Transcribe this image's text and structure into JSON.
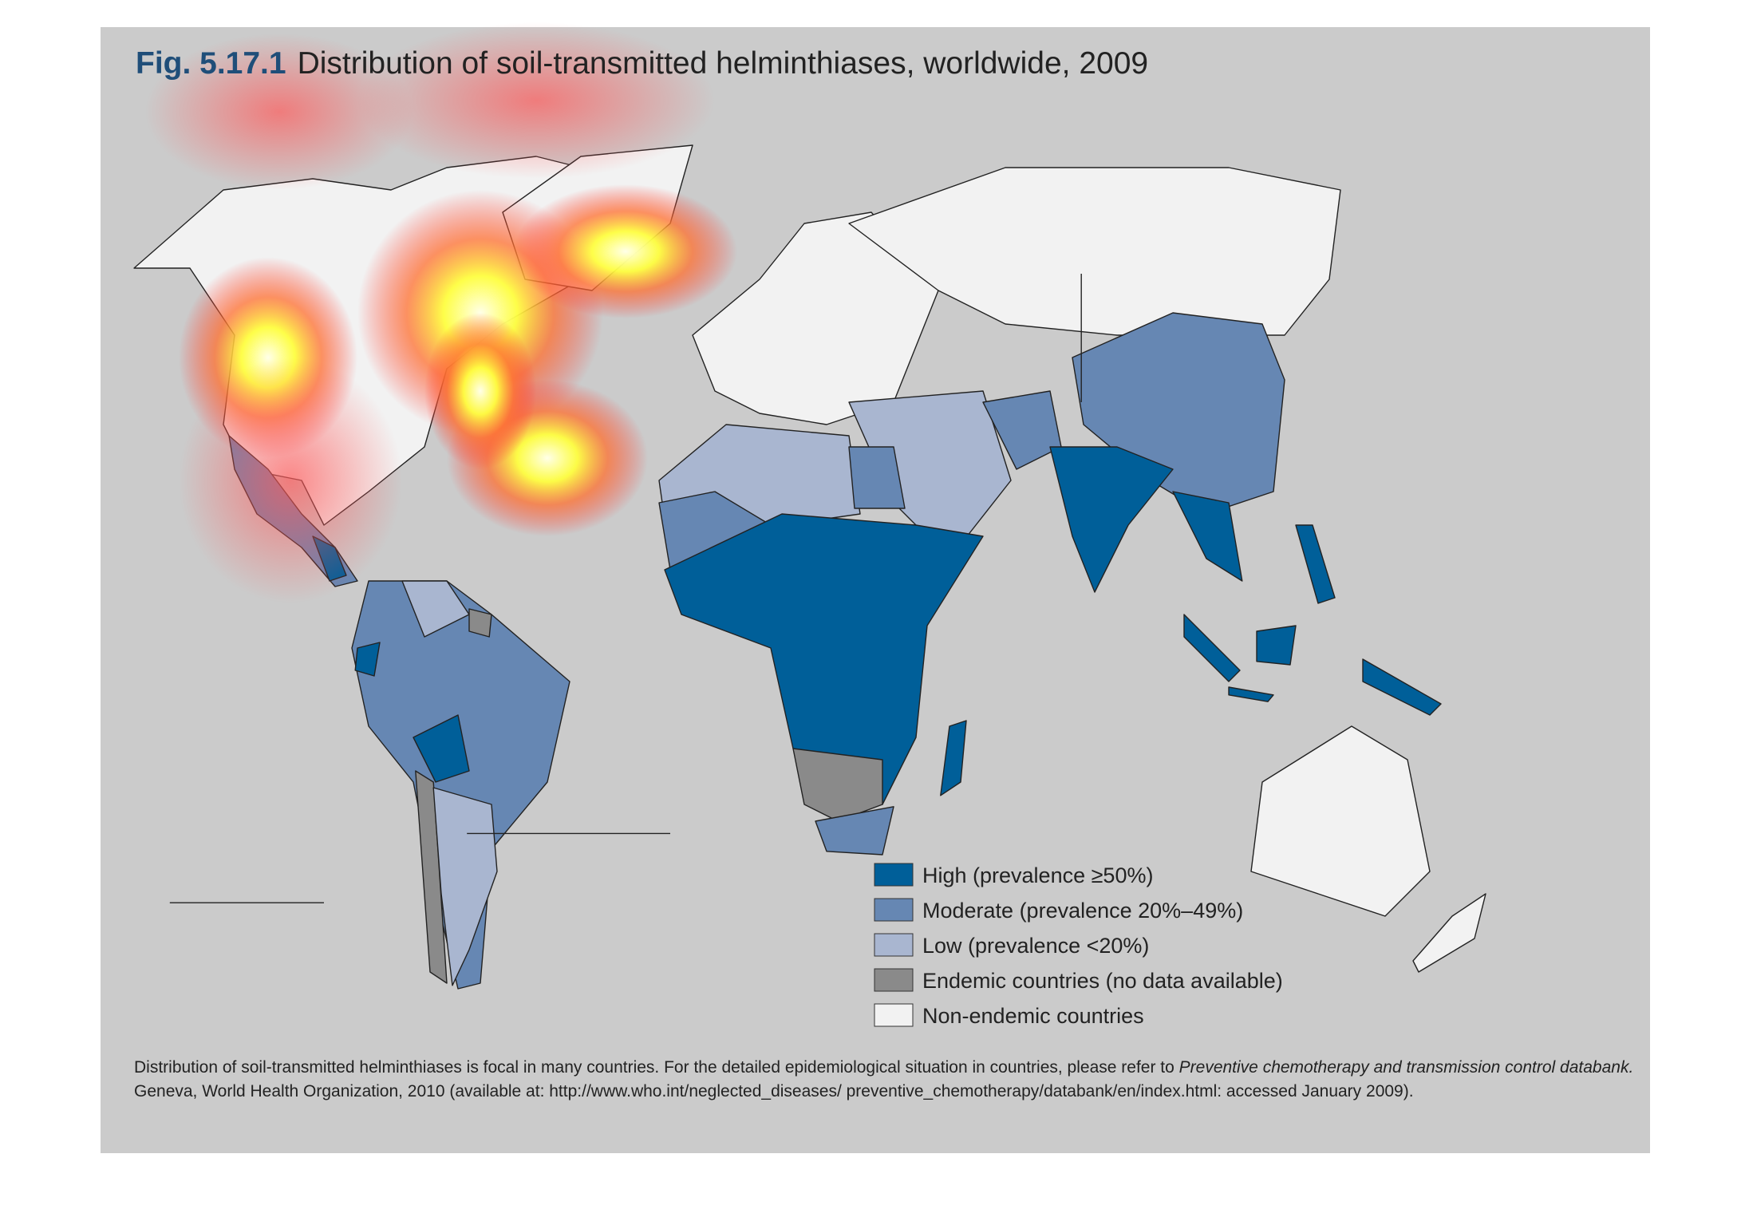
{
  "figure": {
    "label": "Fig. 5.17.1",
    "title": "Distribution of soil-transmitted helminthiases, worldwide, 2009"
  },
  "legend": [
    {
      "label": "High (prevalence ≥50%)",
      "color": "#005f99"
    },
    {
      "label": "Moderate (prevalence 20%–49%)",
      "color": "#6687b3"
    },
    {
      "label": "Low (prevalence <20%)",
      "color": "#a9b6d0"
    },
    {
      "label": "Endemic countries (no data available)",
      "color": "#8a8a8a"
    },
    {
      "label": "Non-endemic countries",
      "color": "#f2f2f2"
    }
  ],
  "caption": {
    "text": "Distribution of soil-transmitted helminthiases is focal in many countries. For the detailed epidemiological situation in countries, please refer to ",
    "italic": "Preventive chemotherapy and transmission control databank.",
    "line2": "Geneva, World Health Organization, 2010 (available at: http://www.who.int/neglected_diseases/ preventive_chemotherapy/databank/en/index.html: accessed January 2009)."
  }
}
